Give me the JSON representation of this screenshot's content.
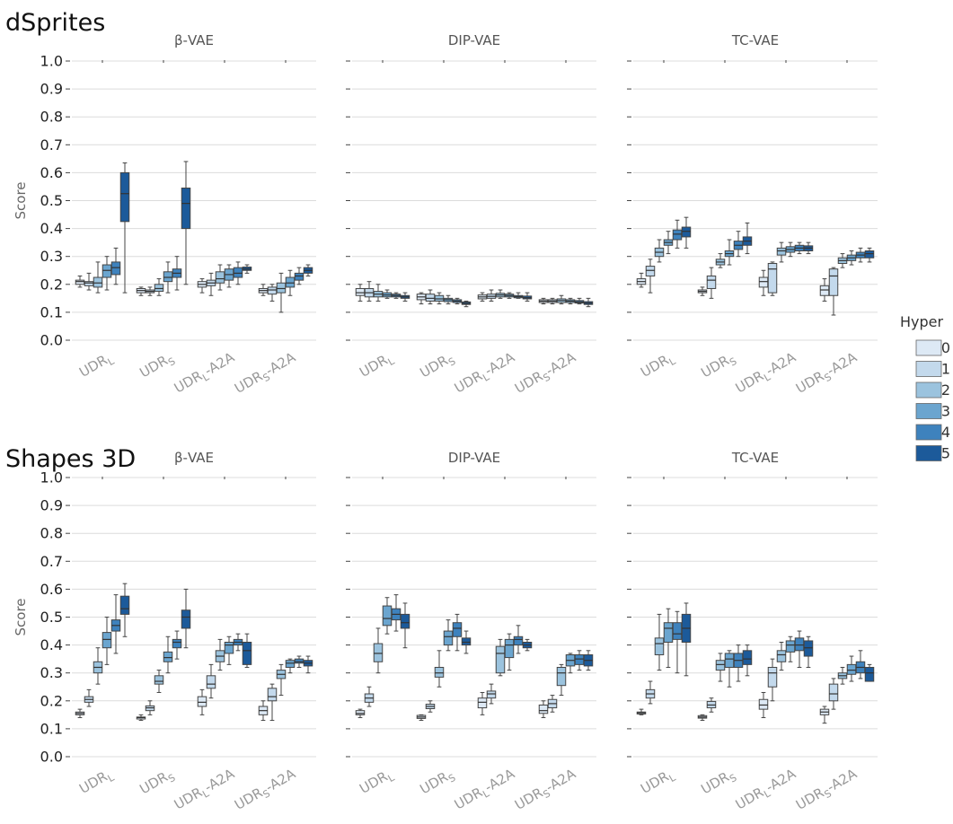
{
  "legend": {
    "title": "Hyper",
    "entries": [
      "0",
      "1",
      "2",
      "3",
      "4",
      "5"
    ],
    "colors": [
      "#dde9f5",
      "#c3d9ec",
      "#9bc3de",
      "#6ba5cf",
      "#3e82bd",
      "#1c5a9a"
    ]
  },
  "chart_data": [
    {
      "type": "box",
      "section": "dSprites",
      "title": "β-VAE",
      "ylabel": "Score",
      "ylim": [
        0,
        1
      ],
      "yticks": [
        "0.0",
        "0.1",
        "0.2",
        "0.3",
        "0.4",
        "0.5",
        "0.6",
        "0.7",
        "0.8",
        "0.9",
        "1.0"
      ],
      "categories": [
        "UDR_L",
        "UDR_S",
        "UDR_L-A2A",
        "UDR_S-A2A"
      ],
      "boxes": [
        [
          [
            0.19,
            0.2,
            0.21,
            0.215,
            0.23
          ],
          [
            0.18,
            0.195,
            0.205,
            0.21,
            0.24
          ],
          [
            0.17,
            0.19,
            0.205,
            0.225,
            0.28
          ],
          [
            0.18,
            0.225,
            0.25,
            0.27,
            0.3
          ],
          [
            0.2,
            0.235,
            0.26,
            0.28,
            0.33
          ],
          [
            0.17,
            0.425,
            0.525,
            0.6,
            0.635
          ]
        ],
        [
          [
            0.16,
            0.17,
            0.178,
            0.185,
            0.19
          ],
          [
            0.16,
            0.17,
            0.175,
            0.18,
            0.19
          ],
          [
            0.16,
            0.175,
            0.185,
            0.2,
            0.22
          ],
          [
            0.17,
            0.21,
            0.225,
            0.245,
            0.28
          ],
          [
            0.18,
            0.225,
            0.24,
            0.255,
            0.3
          ],
          [
            0.2,
            0.4,
            0.49,
            0.545,
            0.64
          ]
        ],
        [
          [
            0.17,
            0.19,
            0.2,
            0.21,
            0.22
          ],
          [
            0.16,
            0.195,
            0.205,
            0.215,
            0.24
          ],
          [
            0.18,
            0.205,
            0.22,
            0.245,
            0.27
          ],
          [
            0.19,
            0.215,
            0.235,
            0.255,
            0.27
          ],
          [
            0.2,
            0.225,
            0.24,
            0.26,
            0.28
          ],
          [
            0.24,
            0.25,
            0.255,
            0.262,
            0.27
          ]
        ],
        [
          [
            0.16,
            0.17,
            0.178,
            0.185,
            0.2
          ],
          [
            0.14,
            0.165,
            0.18,
            0.19,
            0.2
          ],
          [
            0.1,
            0.17,
            0.185,
            0.205,
            0.24
          ],
          [
            0.16,
            0.19,
            0.205,
            0.225,
            0.25
          ],
          [
            0.2,
            0.215,
            0.23,
            0.24,
            0.26
          ],
          [
            0.23,
            0.24,
            0.25,
            0.26,
            0.27
          ]
        ]
      ]
    },
    {
      "type": "box",
      "section": "dSprites",
      "title": "DIP-VAE",
      "ylim": [
        0,
        1
      ],
      "categories": [
        "UDR_L",
        "UDR_S",
        "UDR_L-A2A",
        "UDR_S-A2A"
      ],
      "boxes": [
        [
          [
            0.14,
            0.16,
            0.17,
            0.185,
            0.2
          ],
          [
            0.14,
            0.155,
            0.17,
            0.185,
            0.21
          ],
          [
            0.14,
            0.155,
            0.165,
            0.175,
            0.2
          ],
          [
            0.15,
            0.155,
            0.162,
            0.17,
            0.18
          ],
          [
            0.15,
            0.155,
            0.16,
            0.165,
            0.17
          ],
          [
            0.14,
            0.15,
            0.155,
            0.16,
            0.17
          ]
        ],
        [
          [
            0.13,
            0.145,
            0.155,
            0.165,
            0.17
          ],
          [
            0.13,
            0.14,
            0.15,
            0.165,
            0.18
          ],
          [
            0.13,
            0.14,
            0.148,
            0.16,
            0.17
          ],
          [
            0.13,
            0.138,
            0.145,
            0.15,
            0.16
          ],
          [
            0.13,
            0.135,
            0.14,
            0.145,
            0.15
          ],
          [
            0.12,
            0.128,
            0.132,
            0.137,
            0.14
          ]
        ],
        [
          [
            0.14,
            0.148,
            0.155,
            0.162,
            0.17
          ],
          [
            0.14,
            0.15,
            0.157,
            0.165,
            0.18
          ],
          [
            0.15,
            0.155,
            0.162,
            0.168,
            0.18
          ],
          [
            0.15,
            0.155,
            0.16,
            0.165,
            0.17
          ],
          [
            0.15,
            0.152,
            0.156,
            0.16,
            0.17
          ],
          [
            0.14,
            0.148,
            0.152,
            0.158,
            0.17
          ]
        ],
        [
          [
            0.13,
            0.135,
            0.14,
            0.145,
            0.15
          ],
          [
            0.13,
            0.135,
            0.14,
            0.145,
            0.15
          ],
          [
            0.13,
            0.135,
            0.142,
            0.148,
            0.16
          ],
          [
            0.13,
            0.135,
            0.14,
            0.145,
            0.15
          ],
          [
            0.13,
            0.133,
            0.137,
            0.142,
            0.15
          ],
          [
            0.12,
            0.128,
            0.133,
            0.138,
            0.15
          ]
        ]
      ]
    },
    {
      "type": "box",
      "section": "dSprites",
      "title": "TC-VAE",
      "ylim": [
        0,
        1
      ],
      "categories": [
        "UDR_L",
        "UDR_S",
        "UDR_L-A2A",
        "UDR_S-A2A"
      ],
      "boxes": [
        [
          [
            0.19,
            0.2,
            0.21,
            0.22,
            0.24
          ],
          [
            0.17,
            0.23,
            0.25,
            0.265,
            0.29
          ],
          [
            0.28,
            0.3,
            0.315,
            0.33,
            0.36
          ],
          [
            0.31,
            0.34,
            0.35,
            0.36,
            0.39
          ],
          [
            0.33,
            0.36,
            0.38,
            0.395,
            0.43
          ],
          [
            0.33,
            0.37,
            0.39,
            0.405,
            0.44
          ]
        ],
        [
          [
            0.16,
            0.17,
            0.175,
            0.18,
            0.19
          ],
          [
            0.15,
            0.185,
            0.215,
            0.23,
            0.26
          ],
          [
            0.26,
            0.27,
            0.28,
            0.29,
            0.31
          ],
          [
            0.27,
            0.3,
            0.31,
            0.32,
            0.36
          ],
          [
            0.3,
            0.325,
            0.34,
            0.355,
            0.39
          ],
          [
            0.31,
            0.34,
            0.355,
            0.37,
            0.42
          ]
        ],
        [
          [
            0.16,
            0.19,
            0.21,
            0.225,
            0.25
          ],
          [
            0.16,
            0.17,
            0.255,
            0.275,
            0.28
          ],
          [
            0.28,
            0.305,
            0.32,
            0.33,
            0.35
          ],
          [
            0.3,
            0.315,
            0.325,
            0.335,
            0.35
          ],
          [
            0.31,
            0.32,
            0.33,
            0.34,
            0.35
          ],
          [
            0.31,
            0.32,
            0.33,
            0.338,
            0.35
          ]
        ],
        [
          [
            0.14,
            0.16,
            0.18,
            0.195,
            0.22
          ],
          [
            0.09,
            0.16,
            0.23,
            0.255,
            0.26
          ],
          [
            0.26,
            0.275,
            0.285,
            0.295,
            0.31
          ],
          [
            0.27,
            0.285,
            0.295,
            0.305,
            0.32
          ],
          [
            0.28,
            0.295,
            0.305,
            0.315,
            0.33
          ],
          [
            0.28,
            0.295,
            0.31,
            0.32,
            0.33
          ]
        ]
      ]
    },
    {
      "type": "box",
      "section": "Shapes 3D",
      "title": "β-VAE",
      "ylabel": "Score",
      "ylim": [
        0,
        1
      ],
      "yticks": [
        "0.0",
        "0.1",
        "0.2",
        "0.3",
        "0.4",
        "0.5",
        "0.6",
        "0.7",
        "0.8",
        "0.9",
        "1.0"
      ],
      "categories": [
        "UDR_L",
        "UDR_S",
        "UDR_L-A2A",
        "UDR_S-A2A"
      ],
      "boxes": [
        [
          [
            0.14,
            0.15,
            0.155,
            0.16,
            0.17
          ],
          [
            0.18,
            0.195,
            0.205,
            0.215,
            0.24
          ],
          [
            0.26,
            0.3,
            0.32,
            0.34,
            0.39
          ],
          [
            0.33,
            0.39,
            0.42,
            0.445,
            0.5
          ],
          [
            0.37,
            0.45,
            0.47,
            0.49,
            0.58
          ],
          [
            0.43,
            0.51,
            0.53,
            0.575,
            0.62
          ]
        ],
        [
          [
            0.13,
            0.135,
            0.14,
            0.142,
            0.15
          ],
          [
            0.15,
            0.165,
            0.175,
            0.182,
            0.2
          ],
          [
            0.23,
            0.26,
            0.27,
            0.29,
            0.31
          ],
          [
            0.3,
            0.34,
            0.355,
            0.375,
            0.43
          ],
          [
            0.35,
            0.39,
            0.41,
            0.42,
            0.45
          ],
          [
            0.39,
            0.46,
            0.5,
            0.525,
            0.6
          ]
        ],
        [
          [
            0.15,
            0.18,
            0.195,
            0.215,
            0.24
          ],
          [
            0.21,
            0.245,
            0.26,
            0.29,
            0.33
          ],
          [
            0.31,
            0.34,
            0.36,
            0.38,
            0.42
          ],
          [
            0.33,
            0.37,
            0.4,
            0.41,
            0.43
          ],
          [
            0.38,
            0.4,
            0.41,
            0.42,
            0.44
          ],
          [
            0.32,
            0.33,
            0.38,
            0.41,
            0.44
          ]
        ],
        [
          [
            0.13,
            0.15,
            0.165,
            0.18,
            0.2
          ],
          [
            0.13,
            0.2,
            0.215,
            0.245,
            0.26
          ],
          [
            0.22,
            0.28,
            0.295,
            0.31,
            0.33
          ],
          [
            0.3,
            0.32,
            0.335,
            0.345,
            0.35
          ],
          [
            0.32,
            0.335,
            0.34,
            0.35,
            0.36
          ],
          [
            0.3,
            0.325,
            0.335,
            0.345,
            0.36
          ]
        ]
      ]
    },
    {
      "type": "box",
      "section": "Shapes 3D",
      "title": "DIP-VAE",
      "ylim": [
        0,
        1
      ],
      "categories": [
        "UDR_L",
        "UDR_S",
        "UDR_L-A2A",
        "UDR_S-A2A"
      ],
      "boxes": [
        [
          [
            0.14,
            0.15,
            0.155,
            0.165,
            0.17
          ],
          [
            0.18,
            0.195,
            0.21,
            0.225,
            0.25
          ],
          [
            0.3,
            0.34,
            0.37,
            0.405,
            0.46
          ],
          [
            0.44,
            0.47,
            0.495,
            0.54,
            0.57
          ],
          [
            0.45,
            0.49,
            0.51,
            0.53,
            0.58
          ],
          [
            0.39,
            0.46,
            0.48,
            0.51,
            0.55
          ]
        ],
        [
          [
            0.13,
            0.137,
            0.142,
            0.148,
            0.15
          ],
          [
            0.16,
            0.172,
            0.18,
            0.188,
            0.2
          ],
          [
            0.25,
            0.285,
            0.3,
            0.32,
            0.38
          ],
          [
            0.38,
            0.4,
            0.43,
            0.45,
            0.49
          ],
          [
            0.38,
            0.43,
            0.46,
            0.48,
            0.51
          ],
          [
            0.37,
            0.4,
            0.41,
            0.425,
            0.45
          ]
        ],
        [
          [
            0.15,
            0.175,
            0.195,
            0.21,
            0.23
          ],
          [
            0.19,
            0.21,
            0.225,
            0.235,
            0.26
          ],
          [
            0.29,
            0.3,
            0.37,
            0.395,
            0.42
          ],
          [
            0.31,
            0.355,
            0.4,
            0.42,
            0.44
          ],
          [
            0.37,
            0.4,
            0.42,
            0.43,
            0.47
          ],
          [
            0.38,
            0.39,
            0.4,
            0.41,
            0.42
          ]
        ],
        [
          [
            0.14,
            0.155,
            0.165,
            0.185,
            0.2
          ],
          [
            0.16,
            0.175,
            0.19,
            0.205,
            0.22
          ],
          [
            0.22,
            0.255,
            0.3,
            0.32,
            0.33
          ],
          [
            0.3,
            0.325,
            0.345,
            0.365,
            0.37
          ],
          [
            0.31,
            0.33,
            0.35,
            0.365,
            0.38
          ],
          [
            0.31,
            0.325,
            0.345,
            0.365,
            0.38
          ]
        ]
      ]
    },
    {
      "type": "box",
      "section": "Shapes 3D",
      "title": "TC-VAE",
      "ylim": [
        0,
        1
      ],
      "categories": [
        "UDR_L",
        "UDR_S",
        "UDR_L-A2A",
        "UDR_S-A2A"
      ],
      "boxes": [
        [
          [
            0.15,
            0.153,
            0.157,
            0.16,
            0.17
          ],
          [
            0.19,
            0.21,
            0.225,
            0.24,
            0.27
          ],
          [
            0.31,
            0.365,
            0.405,
            0.425,
            0.51
          ],
          [
            0.32,
            0.41,
            0.46,
            0.48,
            0.53
          ],
          [
            0.3,
            0.42,
            0.44,
            0.48,
            0.52
          ],
          [
            0.29,
            0.41,
            0.46,
            0.51,
            0.55
          ]
        ],
        [
          [
            0.13,
            0.138,
            0.142,
            0.147,
            0.15
          ],
          [
            0.16,
            0.175,
            0.185,
            0.198,
            0.21
          ],
          [
            0.27,
            0.31,
            0.33,
            0.345,
            0.37
          ],
          [
            0.25,
            0.32,
            0.35,
            0.37,
            0.38
          ],
          [
            0.27,
            0.32,
            0.345,
            0.37,
            0.4
          ],
          [
            0.29,
            0.33,
            0.35,
            0.38,
            0.4
          ]
        ],
        [
          [
            0.14,
            0.17,
            0.185,
            0.205,
            0.23
          ],
          [
            0.2,
            0.25,
            0.3,
            0.32,
            0.35
          ],
          [
            0.31,
            0.34,
            0.365,
            0.38,
            0.41
          ],
          [
            0.34,
            0.375,
            0.4,
            0.415,
            0.43
          ],
          [
            0.32,
            0.38,
            0.4,
            0.425,
            0.45
          ],
          [
            0.32,
            0.36,
            0.39,
            0.415,
            0.43
          ]
        ],
        [
          [
            0.12,
            0.15,
            0.16,
            0.17,
            0.18
          ],
          [
            0.17,
            0.2,
            0.225,
            0.26,
            0.28
          ],
          [
            0.26,
            0.28,
            0.29,
            0.3,
            0.32
          ],
          [
            0.27,
            0.295,
            0.31,
            0.33,
            0.36
          ],
          [
            0.28,
            0.3,
            0.32,
            0.34,
            0.38
          ],
          [
            0.27,
            0.27,
            0.3,
            0.32,
            0.33
          ]
        ]
      ]
    }
  ]
}
